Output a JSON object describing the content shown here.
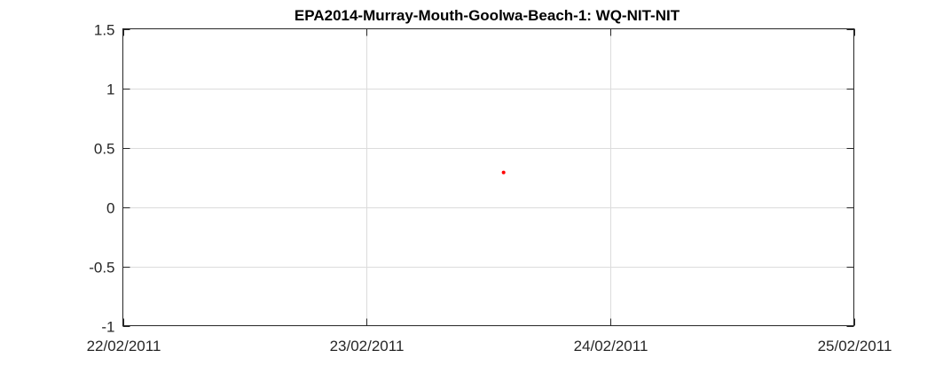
{
  "chart_data": {
    "type": "scatter",
    "title": "EPA2014-Murray-Mouth-Goolwa-Beach-1: WQ-NIT-NIT",
    "xlabel": "",
    "ylabel": "",
    "x_tick_labels": [
      "22/02/2011",
      "23/02/2011",
      "24/02/2011",
      "25/02/2011"
    ],
    "y_tick_labels": [
      "1.5",
      "1",
      "0.5",
      "0",
      "-0.5",
      "-1"
    ],
    "y_ticks": [
      1.5,
      1,
      0.5,
      0,
      -0.5,
      -1
    ],
    "xlim": [
      "2011-02-22",
      "2011-02-25"
    ],
    "ylim": [
      -1,
      1.5
    ],
    "grid": true,
    "series": [
      {
        "color": "#ff0000",
        "points": [
          {
            "x": "2011-02-23 13:30",
            "y": 0.29
          }
        ]
      }
    ]
  }
}
